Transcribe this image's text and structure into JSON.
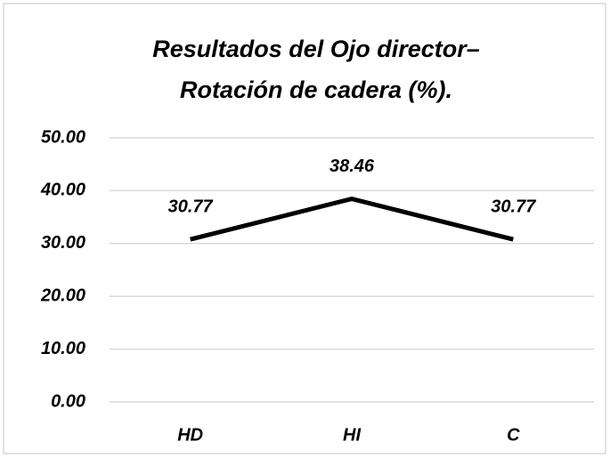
{
  "chart_data": {
    "type": "line",
    "title": [
      "Resultados del Ojo director–",
      "Rotación de cadera  (%)."
    ],
    "categories": [
      "HD",
      "HI",
      "C"
    ],
    "series": [
      {
        "color": "#000000",
        "values": [
          30.77,
          38.46,
          30.77
        ]
      }
    ],
    "ylim": [
      0,
      50
    ],
    "yticks": [
      {
        "value": 0,
        "label": "0.00"
      },
      {
        "value": 10,
        "label": "10.00"
      },
      {
        "value": 20,
        "label": "20.00"
      },
      {
        "value": 30,
        "label": "30.00"
      },
      {
        "value": 40,
        "label": "40.00"
      },
      {
        "value": 50,
        "label": "50.00"
      }
    ],
    "grid": true
  }
}
